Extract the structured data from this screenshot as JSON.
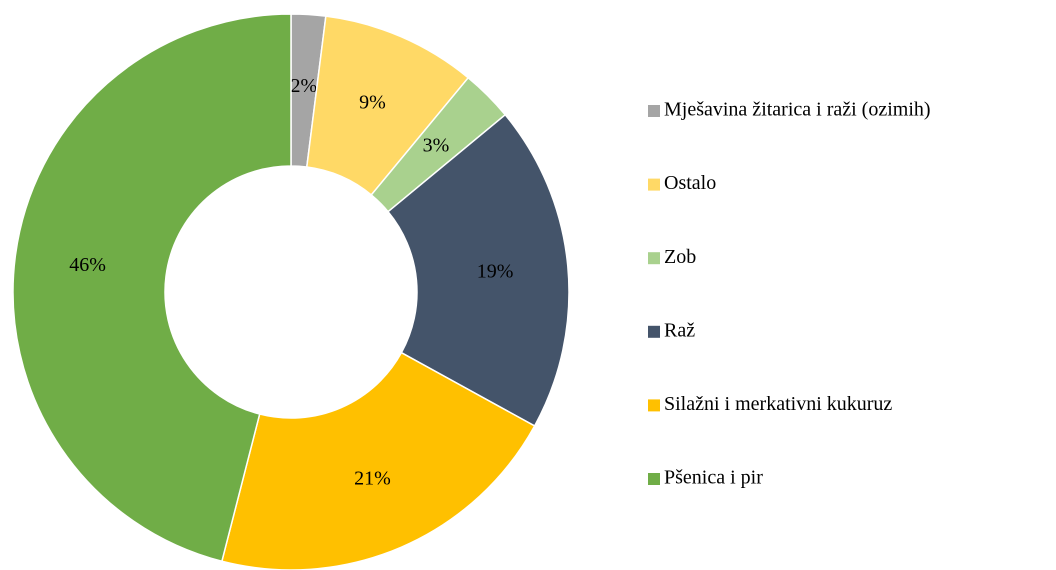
{
  "chart_data": {
    "type": "donut",
    "categories": [
      "Mješavina žitarica i raži (ozimih)",
      "Ostalo",
      "Zob",
      "Raž",
      "Silažni i merkativni kukuruz",
      "Pšenica i pir"
    ],
    "values": [
      2,
      9,
      3,
      19,
      21,
      46
    ],
    "value_labels": [
      "2%",
      "9%",
      "3%",
      "19%",
      "21%",
      "46%"
    ],
    "colors": [
      "#a5a5a5",
      "#ffd966",
      "#a9d18e",
      "#44546a",
      "#ffc000",
      "#70ad47"
    ],
    "legend": "right"
  }
}
